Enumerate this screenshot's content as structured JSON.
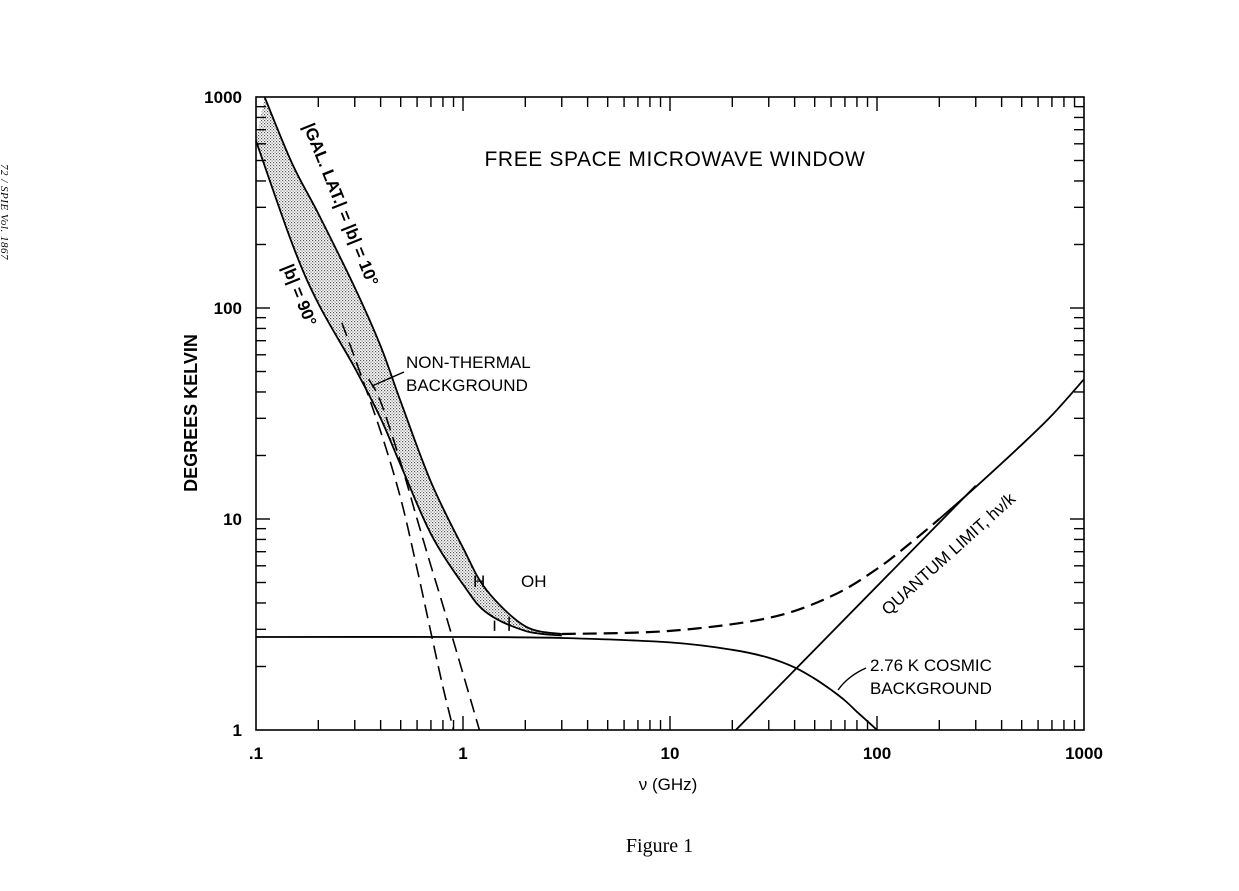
{
  "page_header": "72 / SPIE Vol. 1867",
  "figure_caption": "Figure 1",
  "chart_data": {
    "type": "line",
    "title": "FREE SPACE MICROWAVE WINDOW",
    "xlabel": "ν (GHz)",
    "ylabel": "DEGREES KELVIN",
    "x_scale": "log",
    "y_scale": "log",
    "xlim": [
      0.1,
      1000
    ],
    "ylim": [
      1,
      1000
    ],
    "x_ticks": [
      ".1",
      "1",
      "10",
      "100",
      "1000"
    ],
    "y_ticks": [
      "1",
      "10",
      "100",
      "1000"
    ],
    "grid": false,
    "legend": "none",
    "series": [
      {
        "name": "|GAL. LAT.| = |b| = 10°",
        "style": "solid",
        "x": [
          0.11,
          0.15,
          0.2,
          0.3,
          0.4,
          0.5,
          0.7,
          1.0,
          1.3,
          2.0,
          3.0
        ],
        "y": [
          1000,
          480,
          280,
          125,
          66,
          36,
          15,
          7.3,
          4.6,
          3.1,
          2.85
        ]
      },
      {
        "name": "|b| = 90°",
        "style": "solid",
        "x": [
          0.1,
          0.15,
          0.2,
          0.3,
          0.4,
          0.5,
          0.7,
          1.0,
          1.3,
          2.0,
          3.0
        ],
        "y": [
          620,
          200,
          105,
          52,
          30,
          18,
          8.5,
          4.9,
          3.6,
          2.95,
          2.8
        ]
      },
      {
        "name": "",
        "style": "dashed",
        "x": [
          0.26,
          0.3,
          0.4,
          0.5,
          0.6,
          0.7,
          0.8,
          0.9
        ],
        "y": [
          85,
          58,
          26,
          12.5,
          5.8,
          2.9,
          1.6,
          1.0
        ]
      },
      {
        "name": "",
        "style": "dashed",
        "x": [
          0.35,
          0.4,
          0.5,
          0.6,
          0.7,
          0.8,
          1.0,
          1.2
        ],
        "y": [
          46,
          36,
          18.5,
          10,
          6,
          3.9,
          1.85,
          1.0
        ]
      },
      {
        "name": "2.76 K COSMIC BACKGROUND",
        "style": "solid",
        "x": [
          0.1,
          1,
          3,
          10,
          20,
          30,
          40,
          50,
          60,
          70,
          80,
          90,
          100
        ],
        "y": [
          2.76,
          2.76,
          2.73,
          2.6,
          2.4,
          2.2,
          1.98,
          1.75,
          1.55,
          1.38,
          1.22,
          1.1,
          1.0
        ]
      },
      {
        "name": "",
        "style": "solid",
        "x": [
          3,
          10,
          30,
          60,
          100,
          150,
          200,
          300,
          500,
          700,
          1000
        ],
        "y": [
          2.85,
          2.95,
          3.4,
          4.3,
          5.8,
          7.9,
          10,
          14.2,
          22.5,
          31,
          46
        ]
      },
      {
        "name": "",
        "style": "dashed",
        "x": [
          3,
          10,
          30,
          60,
          100,
          150,
          200
        ],
        "y": [
          2.85,
          2.95,
          3.4,
          4.3,
          5.8,
          7.9,
          10
        ]
      },
      {
        "name": "QUANTUM LIMIT, hν/k",
        "style": "solid",
        "x": [
          20.8,
          300
        ],
        "y": [
          1.0,
          14.4
        ]
      }
    ],
    "annotations": [
      {
        "text": "NON-THERMAL",
        "x": 0.6,
        "y": 58
      },
      {
        "text": "BACKGROUND",
        "x": 0.6,
        "y": 43
      },
      {
        "text": "H",
        "x": 1.42,
        "y": 3.6
      },
      {
        "text": "OH",
        "x": 1.67,
        "y": 3.6
      }
    ]
  }
}
